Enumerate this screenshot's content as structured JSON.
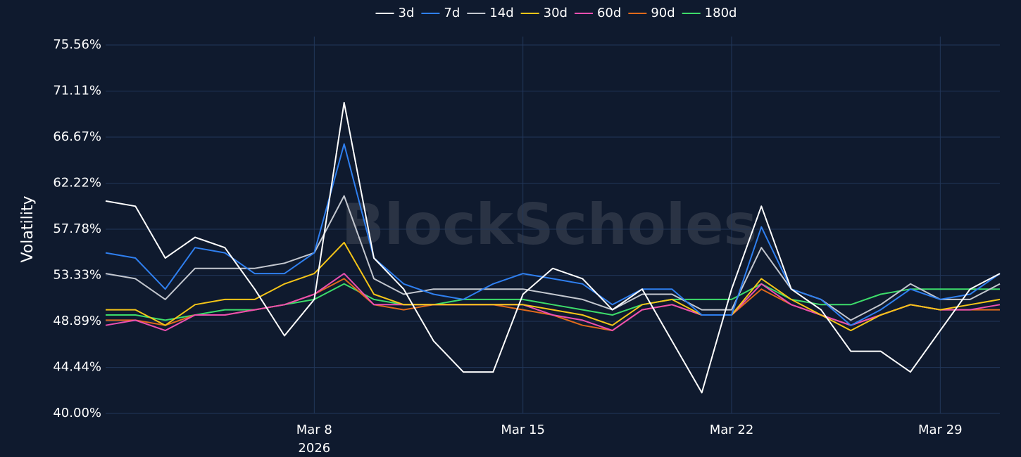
{
  "chart_data": {
    "type": "line",
    "watermark": "BlockScholes",
    "y_label": "Volatility",
    "x": [
      "2026-03-01",
      "2026-03-02",
      "2026-03-03",
      "2026-03-04",
      "2026-03-05",
      "2026-03-06",
      "2026-03-07",
      "2026-03-08",
      "2026-03-09",
      "2026-03-10",
      "2026-03-11",
      "2026-03-12",
      "2026-03-13",
      "2026-03-14",
      "2026-03-15",
      "2026-03-16",
      "2026-03-17",
      "2026-03-18",
      "2026-03-19",
      "2026-03-20",
      "2026-03-21",
      "2026-03-22",
      "2026-03-23",
      "2026-03-24",
      "2026-03-25",
      "2026-03-26",
      "2026-03-27",
      "2026-03-28",
      "2026-03-29",
      "2026-03-30",
      "2026-03-31"
    ],
    "xlim": [
      "2026-03-01",
      "2026-03-31"
    ],
    "xticks": [
      {
        "value": "2026-03-08",
        "label": "Mar 8"
      },
      {
        "value": "2026-03-15",
        "label": "Mar 15"
      },
      {
        "value": "2026-03-22",
        "label": "Mar 22"
      },
      {
        "value": "2026-03-29",
        "label": "Mar 29"
      }
    ],
    "x_year_label": "2026",
    "ylim": [
      40,
      75.56
    ],
    "yticks": [
      {
        "value": 40,
        "label": "40.00%"
      },
      {
        "value": 44.44,
        "label": "44.44%"
      },
      {
        "value": 48.89,
        "label": "48.89%"
      },
      {
        "value": 53.33,
        "label": "53.33%"
      },
      {
        "value": 57.78,
        "label": "57.78%"
      },
      {
        "value": 62.22,
        "label": "62.22%"
      },
      {
        "value": 66.67,
        "label": "66.67%"
      },
      {
        "value": 71.11,
        "label": "71.11%"
      },
      {
        "value": 75.56,
        "label": "75.56%"
      }
    ],
    "grid": true,
    "legend": "top",
    "series": [
      {
        "name": "3d",
        "color": "#ffffff",
        "values": [
          60.5,
          60,
          55,
          57,
          56,
          52,
          47.5,
          51,
          70,
          55,
          52,
          47,
          44,
          44,
          51.5,
          54,
          53,
          50,
          52,
          47,
          42,
          52,
          60,
          52,
          50,
          46,
          46,
          44,
          48,
          52,
          53.5
        ]
      },
      {
        "name": "7d",
        "color": "#2f7fef",
        "values": [
          55.5,
          55,
          52,
          56,
          55.5,
          53.5,
          53.5,
          55.5,
          66,
          55,
          52.5,
          51.5,
          51,
          52.5,
          53.5,
          53,
          52.5,
          50.5,
          52,
          52,
          49.5,
          49.5,
          58,
          52,
          51,
          48.5,
          50,
          52,
          51,
          51.5,
          53.5
        ]
      },
      {
        "name": "14d",
        "color": "#c3c7cf",
        "values": [
          53.5,
          53,
          51,
          54,
          54,
          54,
          54.5,
          55.5,
          61,
          53,
          51.5,
          52,
          52,
          52,
          52,
          51.5,
          51,
          50,
          51.5,
          51.5,
          50,
          50,
          56,
          52,
          51,
          49,
          50.5,
          52.5,
          51,
          51,
          52.5
        ]
      },
      {
        "name": "30d",
        "color": "#f5c518",
        "values": [
          50,
          50,
          48.5,
          50.5,
          51,
          51,
          52.5,
          53.5,
          56.5,
          51.5,
          50.5,
          50.5,
          50.5,
          50.5,
          50.5,
          50,
          49.5,
          48.5,
          50.5,
          51,
          49.5,
          49.5,
          53,
          51,
          49.5,
          48,
          49.5,
          50.5,
          50,
          50.5,
          51
        ]
      },
      {
        "name": "60d",
        "color": "#ec4fb0",
        "values": [
          48.5,
          49,
          48,
          49.5,
          49.5,
          50,
          50.5,
          51.5,
          53.5,
          50.5,
          50.5,
          50.5,
          50.5,
          50.5,
          50.5,
          49.5,
          49,
          48,
          50,
          50.5,
          49.5,
          49.5,
          52.5,
          50.5,
          49.5,
          48.5,
          49.5,
          50.5,
          50,
          50,
          50.5
        ]
      },
      {
        "name": "90d",
        "color": "#e06a1b",
        "values": [
          49,
          49,
          48.5,
          49.5,
          49.5,
          50,
          50.5,
          51.5,
          53,
          50.5,
          50,
          50.5,
          50.5,
          50.5,
          50,
          49.5,
          48.5,
          48,
          50,
          50.5,
          49.5,
          49.5,
          52,
          50.5,
          49.5,
          48.5,
          49.5,
          50.5,
          50,
          50,
          50
        ]
      },
      {
        "name": "180d",
        "color": "#3ddc6a",
        "values": [
          49.5,
          49.5,
          49,
          49.5,
          50,
          50,
          50.5,
          51,
          52.5,
          51,
          50.5,
          50.5,
          51,
          51,
          51,
          50.5,
          50,
          49.5,
          50.5,
          51,
          51,
          51,
          52.5,
          51,
          50.5,
          50.5,
          51.5,
          52,
          52,
          52,
          52
        ]
      }
    ]
  }
}
